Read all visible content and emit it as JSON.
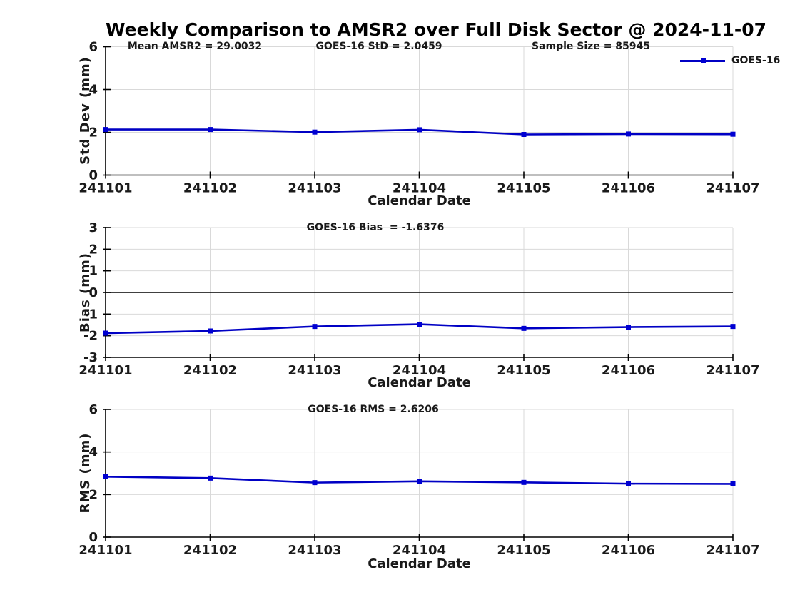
{
  "title": "Weekly Comparison to AMSR2 over Full Disk Sector @ 2024-11-07",
  "legend": {
    "label": "GOES-16"
  },
  "colors": {
    "line": "#0000c4",
    "marker": "#0000d2",
    "grid": "#d9d9d9",
    "axis": "#000000",
    "zero_line": "#000000"
  },
  "chart_data": [
    {
      "type": "line",
      "annotations": [
        "Mean AMSR2 = 29.0032",
        "GOES-16 StD = 2.0459",
        "Sample Size = 85945"
      ],
      "xlabel": "Calendar Date",
      "ylabel": "Std Dev (mm)",
      "categories": [
        "241101",
        "241102",
        "241103",
        "241104",
        "241105",
        "241106",
        "241107"
      ],
      "yticks": [
        0,
        2,
        4,
        6
      ],
      "ylim": [
        0,
        6
      ],
      "grid": true,
      "zero_line": false,
      "legend_position": "top-right",
      "series": [
        {
          "name": "GOES-16",
          "values": [
            2.13,
            2.13,
            2.01,
            2.12,
            1.9,
            1.92,
            1.91
          ]
        }
      ]
    },
    {
      "type": "line",
      "annotations": [
        "GOES-16 Bias  = -1.6376"
      ],
      "xlabel": "Calendar Date",
      "ylabel": "Bias (mm)",
      "categories": [
        "241101",
        "241102",
        "241103",
        "241104",
        "241105",
        "241106",
        "241107"
      ],
      "yticks": [
        -3,
        -2,
        -1,
        0,
        1,
        2,
        3
      ],
      "ylim": [
        -3,
        3
      ],
      "grid": true,
      "zero_line": true,
      "series": [
        {
          "name": "GOES-16",
          "values": [
            -1.88,
            -1.78,
            -1.57,
            -1.47,
            -1.66,
            -1.6,
            -1.57
          ]
        }
      ]
    },
    {
      "type": "line",
      "annotations": [
        "GOES-16 RMS = 2.6206"
      ],
      "xlabel": "Calendar Date",
      "ylabel": "RMS (mm)",
      "categories": [
        "241101",
        "241102",
        "241103",
        "241104",
        "241105",
        "241106",
        "241107"
      ],
      "yticks": [
        0,
        2,
        4,
        6
      ],
      "ylim": [
        0,
        6
      ],
      "grid": true,
      "zero_line": false,
      "series": [
        {
          "name": "GOES-16",
          "values": [
            2.84,
            2.77,
            2.56,
            2.62,
            2.57,
            2.51,
            2.5
          ]
        }
      ]
    }
  ]
}
